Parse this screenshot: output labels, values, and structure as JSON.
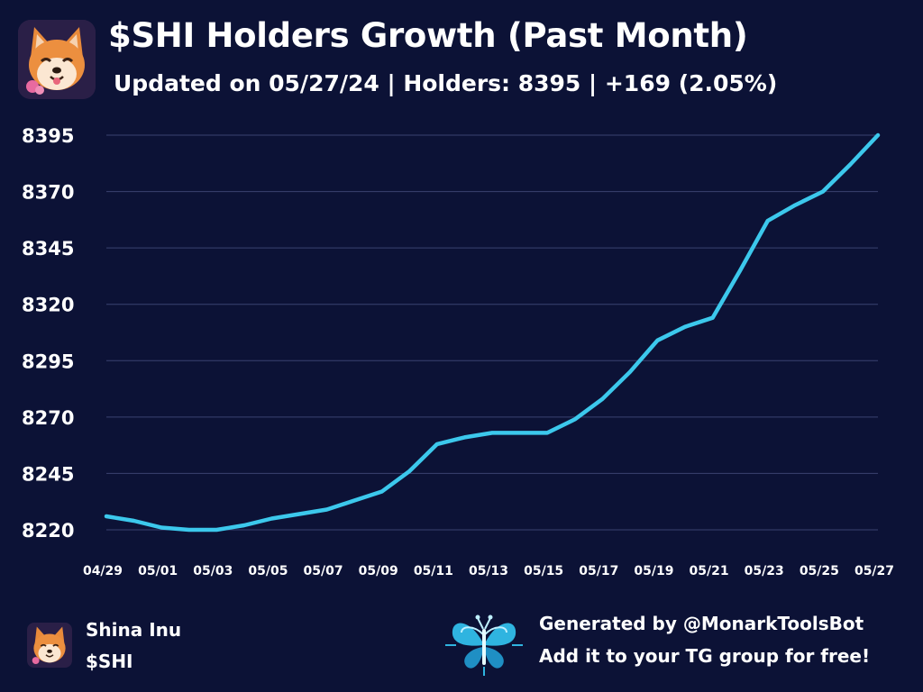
{
  "header": {
    "title": "$SHI Holders Growth (Past Month)",
    "subtitle": "Updated on 05/27/24 | Holders: 8395 | +169 (2.05%)",
    "logo_icon": "shiba-inu-dog-icon"
  },
  "chart_data": {
    "type": "line",
    "title": "$SHI Holders Growth (Past Month)",
    "xlabel": "",
    "ylabel": "",
    "x": [
      "04/29",
      "04/30",
      "05/01",
      "05/02",
      "05/03",
      "05/04",
      "05/05",
      "05/06",
      "05/07",
      "05/08",
      "05/09",
      "05/10",
      "05/11",
      "05/12",
      "05/13",
      "05/14",
      "05/15",
      "05/16",
      "05/17",
      "05/18",
      "05/19",
      "05/20",
      "05/21",
      "05/22",
      "05/23",
      "05/24",
      "05/25",
      "05/26",
      "05/27"
    ],
    "series": [
      {
        "values": [
          8226,
          8224,
          8221,
          8220,
          8220,
          8222,
          8225,
          8227,
          8229,
          8233,
          8237,
          8246,
          8258,
          8261,
          8263,
          8263,
          8263,
          8269,
          8278,
          8290,
          8304,
          8310,
          8314,
          8335,
          8357,
          8364,
          8370,
          8382,
          8395
        ],
        "color": "#3cc8ec"
      }
    ],
    "xticks": [
      "04/29",
      "05/01",
      "05/03",
      "05/05",
      "05/07",
      "05/09",
      "05/11",
      "05/13",
      "05/15",
      "05/17",
      "05/19",
      "05/21",
      "05/23",
      "05/25",
      "05/27"
    ],
    "yticks": [
      "8220",
      "8245",
      "8270",
      "8295",
      "8320",
      "8345",
      "8370",
      "8395"
    ],
    "ylim": [
      8220,
      8395
    ],
    "grid": true,
    "legend": "none"
  },
  "footer": {
    "token_name": "Shina Inu",
    "token_symbol": "$SHI",
    "generated_by": "Generated by @MonarkToolsBot",
    "cta": "Add it to your TG group for free!",
    "brand_icon": "butterfly-logo-icon",
    "brand_color": "#3cc8ec"
  }
}
